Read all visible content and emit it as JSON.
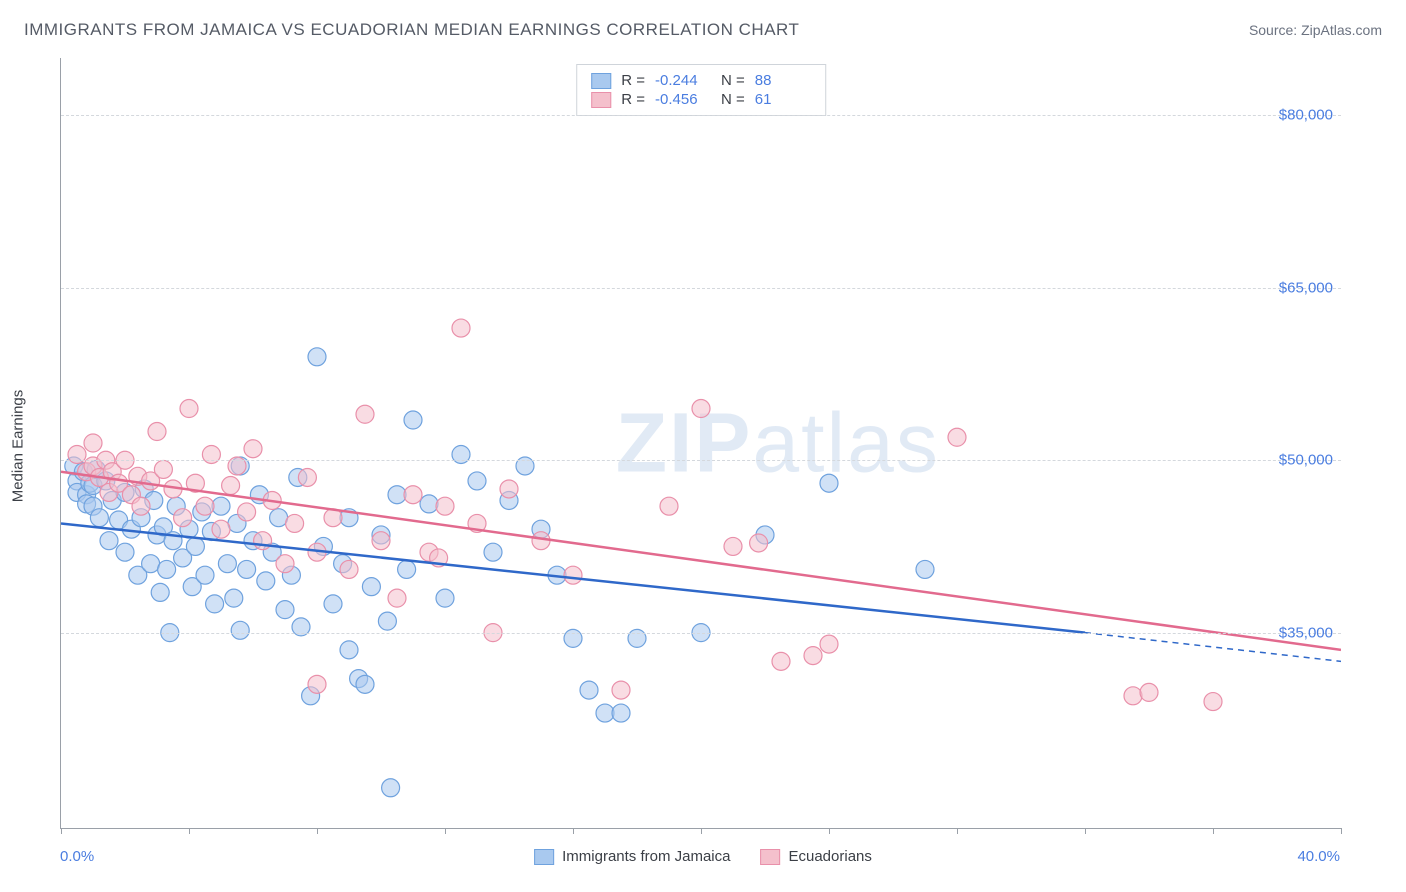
{
  "title": "IMMIGRANTS FROM JAMAICA VS ECUADORIAN MEDIAN EARNINGS CORRELATION CHART",
  "source": "Source: ZipAtlas.com",
  "watermark_bold": "ZIP",
  "watermark_light": "atlas",
  "chart": {
    "type": "scatter",
    "ylabel": "Median Earnings",
    "xlim": [
      0,
      40
    ],
    "ylim": [
      18000,
      85000
    ],
    "yticks": [
      35000,
      50000,
      65000,
      80000
    ],
    "ytick_labels": [
      "$35,000",
      "$50,000",
      "$65,000",
      "$80,000"
    ],
    "xaxis_left_label": "0.0%",
    "xaxis_right_label": "40.0%",
    "xtick_positions": [
      0,
      4,
      8,
      12,
      16,
      20,
      24,
      28,
      32,
      36,
      40
    ],
    "background_color": "#ffffff",
    "grid_color": "#d4d8dd",
    "axis_color": "#9aa0a8",
    "value_color": "#4a7de0",
    "marker_radius": 9,
    "marker_opacity": 0.55,
    "series": [
      {
        "name": "Immigrants from Jamaica",
        "color_fill": "#a9c9ef",
        "color_stroke": "#6fa2de",
        "color_line": "#2f68c9",
        "R": "-0.244",
        "N": "88",
        "regression": {
          "x1": 0,
          "y1": 44500,
          "x2": 32,
          "y2": 35000,
          "dash_x2": 40,
          "dash_y2": 32500
        },
        "points": [
          [
            0.4,
            49500
          ],
          [
            0.5,
            48200
          ],
          [
            0.5,
            47200
          ],
          [
            0.7,
            49000
          ],
          [
            0.8,
            47000
          ],
          [
            0.8,
            46200
          ],
          [
            0.9,
            48000
          ],
          [
            1.0,
            47800
          ],
          [
            1.0,
            46000
          ],
          [
            1.1,
            49200
          ],
          [
            1.2,
            45000
          ],
          [
            1.4,
            48200
          ],
          [
            1.5,
            43000
          ],
          [
            1.6,
            46500
          ],
          [
            1.8,
            44800
          ],
          [
            2.0,
            47200
          ],
          [
            2.0,
            42000
          ],
          [
            2.2,
            44000
          ],
          [
            2.4,
            40000
          ],
          [
            2.5,
            45000
          ],
          [
            2.6,
            47500
          ],
          [
            2.8,
            41000
          ],
          [
            2.9,
            46500
          ],
          [
            3.0,
            43500
          ],
          [
            3.1,
            38500
          ],
          [
            3.2,
            44200
          ],
          [
            3.3,
            40500
          ],
          [
            3.4,
            35000
          ],
          [
            3.5,
            43000
          ],
          [
            3.6,
            46000
          ],
          [
            3.8,
            41500
          ],
          [
            4.0,
            44000
          ],
          [
            4.1,
            39000
          ],
          [
            4.2,
            42500
          ],
          [
            4.4,
            45500
          ],
          [
            4.5,
            40000
          ],
          [
            4.7,
            43800
          ],
          [
            4.8,
            37500
          ],
          [
            5.0,
            46000
          ],
          [
            5.2,
            41000
          ],
          [
            5.4,
            38000
          ],
          [
            5.5,
            44500
          ],
          [
            5.6,
            49500
          ],
          [
            5.8,
            40500
          ],
          [
            5.6,
            35200
          ],
          [
            6.0,
            43000
          ],
          [
            6.2,
            47000
          ],
          [
            6.4,
            39500
          ],
          [
            6.6,
            42000
          ],
          [
            6.8,
            45000
          ],
          [
            7.0,
            37000
          ],
          [
            7.2,
            40000
          ],
          [
            7.4,
            48500
          ],
          [
            7.5,
            35500
          ],
          [
            7.8,
            29500
          ],
          [
            8.0,
            59000
          ],
          [
            8.2,
            42500
          ],
          [
            8.5,
            37500
          ],
          [
            8.8,
            41000
          ],
          [
            9.0,
            45000
          ],
          [
            9.0,
            33500
          ],
          [
            9.3,
            31000
          ],
          [
            9.5,
            30500
          ],
          [
            9.7,
            39000
          ],
          [
            10.0,
            43500
          ],
          [
            10.2,
            36000
          ],
          [
            10.3,
            21500
          ],
          [
            10.5,
            47000
          ],
          [
            10.8,
            40500
          ],
          [
            11.0,
            53500
          ],
          [
            11.5,
            46200
          ],
          [
            12.0,
            38000
          ],
          [
            12.5,
            50500
          ],
          [
            13.0,
            48200
          ],
          [
            13.5,
            42000
          ],
          [
            14.0,
            46500
          ],
          [
            14.5,
            49500
          ],
          [
            15.0,
            44000
          ],
          [
            15.5,
            40000
          ],
          [
            16.0,
            34500
          ],
          [
            16.5,
            30000
          ],
          [
            17.0,
            28000
          ],
          [
            17.5,
            28000
          ],
          [
            18.0,
            34500
          ],
          [
            20.0,
            35000
          ],
          [
            22.0,
            43500
          ],
          [
            24.0,
            48000
          ],
          [
            27.0,
            40500
          ]
        ]
      },
      {
        "name": "Ecuadorians",
        "color_fill": "#f4c0cc",
        "color_stroke": "#e990aa",
        "color_line": "#e26a8e",
        "R": "-0.456",
        "N": "61",
        "regression": {
          "x1": 0,
          "y1": 49000,
          "x2": 40,
          "y2": 33500
        },
        "points": [
          [
            0.5,
            50500
          ],
          [
            0.8,
            49000
          ],
          [
            1.0,
            49500
          ],
          [
            1.0,
            51500
          ],
          [
            1.2,
            48500
          ],
          [
            1.4,
            50000
          ],
          [
            1.5,
            47200
          ],
          [
            1.6,
            49000
          ],
          [
            1.8,
            48000
          ],
          [
            2.0,
            50000
          ],
          [
            2.2,
            47000
          ],
          [
            2.4,
            48600
          ],
          [
            2.5,
            46000
          ],
          [
            2.8,
            48200
          ],
          [
            3.0,
            52500
          ],
          [
            3.2,
            49200
          ],
          [
            3.5,
            47500
          ],
          [
            3.8,
            45000
          ],
          [
            4.0,
            54500
          ],
          [
            4.2,
            48000
          ],
          [
            4.5,
            46000
          ],
          [
            4.7,
            50500
          ],
          [
            5.0,
            44000
          ],
          [
            5.3,
            47800
          ],
          [
            5.5,
            49500
          ],
          [
            5.8,
            45500
          ],
          [
            6.0,
            51000
          ],
          [
            6.3,
            43000
          ],
          [
            6.6,
            46500
          ],
          [
            7.0,
            41000
          ],
          [
            7.3,
            44500
          ],
          [
            7.7,
            48500
          ],
          [
            8.0,
            42000
          ],
          [
            8.0,
            30500
          ],
          [
            8.5,
            45000
          ],
          [
            9.0,
            40500
          ],
          [
            9.5,
            54000
          ],
          [
            10.0,
            43000
          ],
          [
            10.5,
            38000
          ],
          [
            11.0,
            47000
          ],
          [
            11.5,
            42000
          ],
          [
            11.8,
            41500
          ],
          [
            12.0,
            46000
          ],
          [
            12.5,
            61500
          ],
          [
            13.0,
            44500
          ],
          [
            13.5,
            35000
          ],
          [
            14.0,
            47500
          ],
          [
            15.0,
            43000
          ],
          [
            16.0,
            40000
          ],
          [
            17.5,
            30000
          ],
          [
            19.0,
            46000
          ],
          [
            20.0,
            54500
          ],
          [
            21.0,
            42500
          ],
          [
            21.8,
            42800
          ],
          [
            22.5,
            32500
          ],
          [
            23.5,
            33000
          ],
          [
            24.0,
            34000
          ],
          [
            28.0,
            52000
          ],
          [
            33.5,
            29500
          ],
          [
            36.0,
            29000
          ],
          [
            34.0,
            29800
          ]
        ]
      }
    ]
  },
  "legend": {
    "series1_label": "Immigrants from Jamaica",
    "series2_label": "Ecuadorians"
  }
}
